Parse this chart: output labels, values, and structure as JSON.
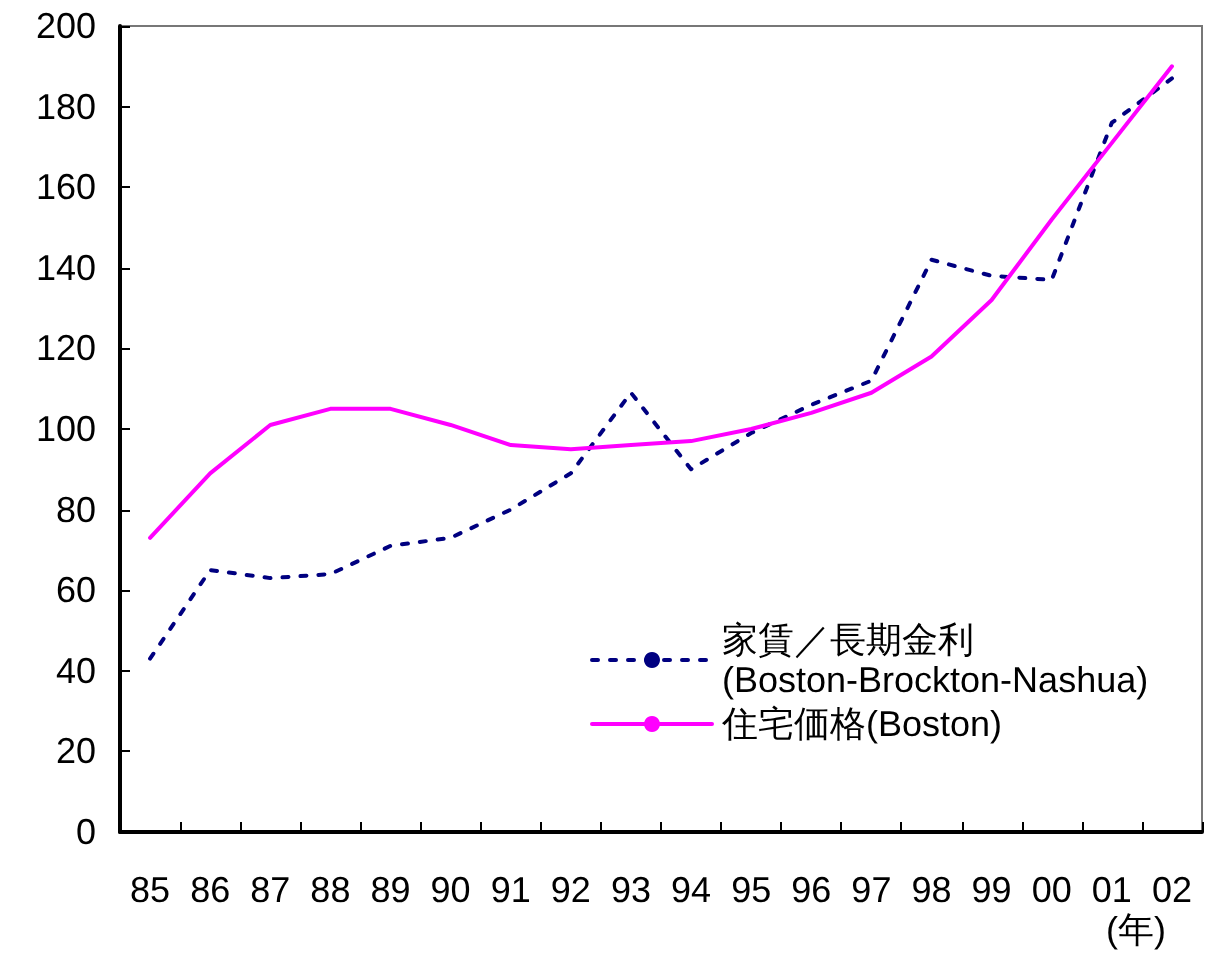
{
  "chart_data": {
    "type": "line",
    "xlabel": "(年)",
    "categories": [
      "85",
      "86",
      "87",
      "88",
      "89",
      "90",
      "91",
      "92",
      "93",
      "94",
      "95",
      "96",
      "97",
      "98",
      "99",
      "00",
      "01",
      "02"
    ],
    "series": [
      {
        "name": "家賃／長期金利(Boston-Brockton-Nashua)",
        "color": "#000080",
        "line_style": "dashed",
        "values": [
          43,
          65,
          63,
          64,
          71,
          73,
          80,
          89,
          109,
          90,
          99,
          106,
          112,
          142,
          138,
          137,
          176,
          187
        ]
      },
      {
        "name": "住宅価格(Boston)",
        "color": "#ff00ff",
        "line_style": "solid",
        "values": [
          73,
          89,
          101,
          105,
          105,
          101,
          96,
          95,
          96,
          97,
          100,
          104,
          109,
          118,
          132,
          152,
          171,
          190
        ]
      }
    ],
    "ylim": [
      0,
      200
    ],
    "yticks": [
      0,
      20,
      40,
      60,
      80,
      100,
      120,
      140,
      160,
      180,
      200
    ],
    "grid": false,
    "legend": "bottom right",
    "marker": "none"
  }
}
